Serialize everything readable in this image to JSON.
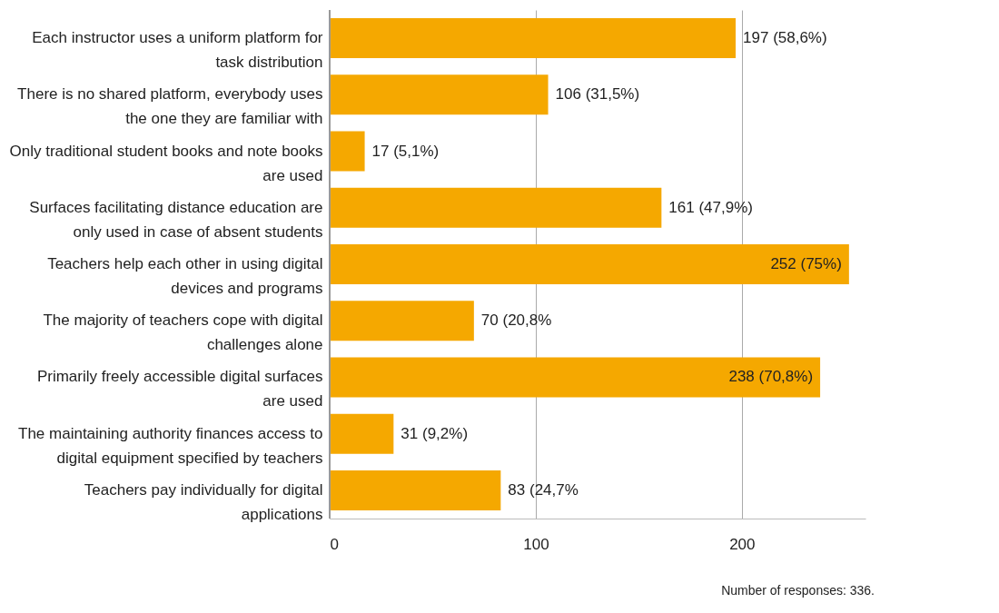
{
  "chart_data": {
    "type": "bar",
    "orientation": "horizontal",
    "categories": [
      "Each instructor uses a uniform platform for task distribution",
      "There is no shared platform, everybody uses the one they are familiar with",
      "Only traditional student  books and note books are used",
      "Surfaces facilitating distance education are only used in case of absent students",
      "Teachers help each other in using digital devices and programs",
      "The majority of teachers cope with digital challenges alone",
      "Primarily freely accessible digital surfaces are used",
      "The maintaining authority finances  access to digital equipment specified by teachers",
      "Teachers pay individually for digital applications"
    ],
    "values": [
      197,
      106,
      17,
      161,
      252,
      70,
      238,
      31,
      83
    ],
    "value_labels": [
      "197 (58,6%)",
      "106 (31,5%)",
      "17 (5,1%)",
      "161 (47,9%)",
      "252 (75%)",
      "70 (20,8%",
      "238 (70,8%)",
      "31 (9,2%)",
      "83 (24,7%"
    ],
    "color": "#f5a800",
    "xlim": [
      0,
      260
    ],
    "xticks": [
      0,
      100,
      200
    ],
    "grid": "x",
    "annotations": [
      "Number of responses: 336."
    ]
  }
}
